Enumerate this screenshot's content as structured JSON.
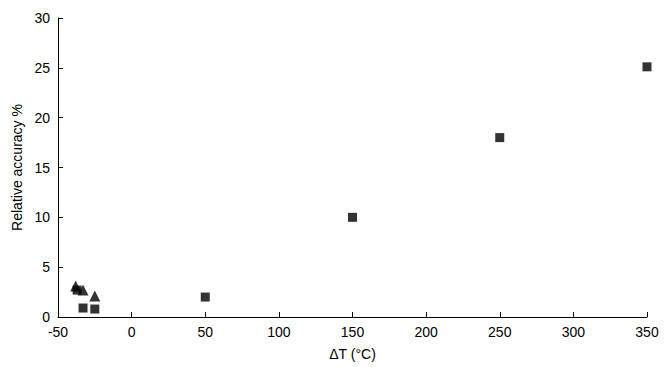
{
  "chart_data": {
    "type": "scatter",
    "x_label": "ΔT (°C)",
    "y_label": "Relative accuracy %",
    "xlim": [
      -50,
      350
    ],
    "xticks": [
      -50,
      0,
      50,
      100,
      150,
      200,
      250,
      300,
      350
    ],
    "ylim": [
      0,
      30
    ],
    "yticks": [
      0,
      5,
      10,
      15,
      20,
      25,
      30
    ],
    "grid": false,
    "series": [
      {
        "marker": "square",
        "color": "#000000",
        "x": [
          -37,
          -33,
          -25,
          50,
          150,
          250,
          350
        ],
        "values": [
          2.7,
          0.9,
          0.8,
          2,
          10,
          18,
          25.1
        ]
      },
      {
        "marker": "triangle",
        "color": "#000000",
        "x": [
          -38,
          -33,
          -25
        ],
        "values": [
          3.1,
          2.7,
          2.1
        ]
      }
    ]
  }
}
